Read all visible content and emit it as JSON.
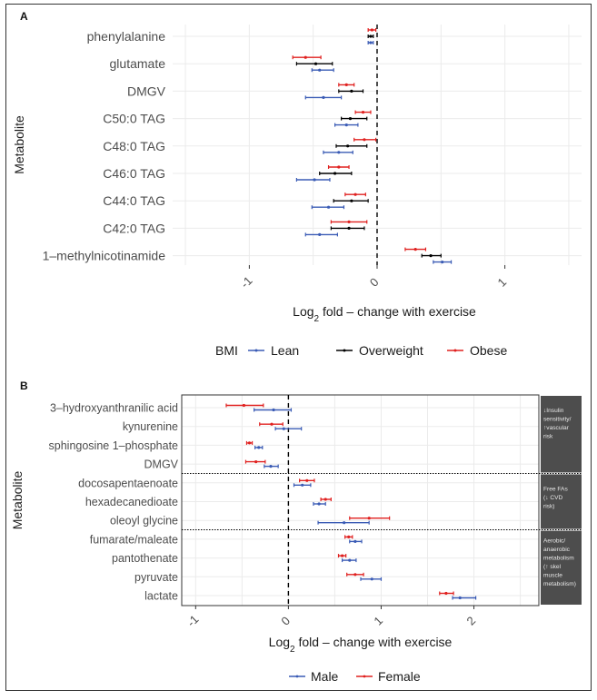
{
  "colors": {
    "lean": "#3a5bb5",
    "overweight": "#000000",
    "obese": "#e0201f",
    "male": "#3a5bb5",
    "female": "#e0201f",
    "side_panel": "#4d4d4d"
  },
  "chart_data": [
    {
      "panel": "A",
      "type": "forest",
      "ylabel": "Metabolite",
      "xlabel_pre": "Log",
      "xlabel_sub": "2",
      "xlabel_post": " fold – change with exercise",
      "xlim": [
        -1.6,
        1.6
      ],
      "xticks": [
        "-1",
        "0",
        "1"
      ],
      "xtick_values": [
        -1,
        0,
        1
      ],
      "reference_line": 0,
      "legend_title": "BMI",
      "legend": [
        "Lean",
        "Overweight",
        "Obese"
      ],
      "categories": [
        "phenylalanine",
        "glutamate",
        "DMGV",
        "C50:0 TAG",
        "C48:0 TAG",
        "C46:0 TAG",
        "C44:0 TAG",
        "C42:0 TAG",
        "1–methylnicotinamide"
      ],
      "series": [
        {
          "name": "Obese",
          "estimate": [
            -0.04,
            -0.56,
            -0.24,
            -0.11,
            -0.1,
            -0.3,
            -0.17,
            -0.22,
            0.3
          ],
          "lower": [
            -0.07,
            -0.66,
            -0.3,
            -0.17,
            -0.18,
            -0.38,
            -0.25,
            -0.36,
            0.22
          ],
          "upper": [
            -0.01,
            -0.44,
            -0.18,
            -0.05,
            -0.01,
            -0.22,
            -0.09,
            -0.08,
            0.38
          ]
        },
        {
          "name": "Overweight",
          "estimate": [
            -0.05,
            -0.48,
            -0.2,
            -0.21,
            -0.23,
            -0.33,
            -0.2,
            -0.22,
            0.42
          ],
          "lower": [
            -0.07,
            -0.63,
            -0.3,
            -0.28,
            -0.32,
            -0.45,
            -0.34,
            -0.36,
            0.35
          ],
          "upper": [
            -0.03,
            -0.35,
            -0.11,
            -0.08,
            -0.08,
            -0.2,
            -0.07,
            -0.1,
            0.5
          ]
        },
        {
          "name": "Lean",
          "estimate": [
            -0.05,
            -0.45,
            -0.42,
            -0.24,
            -0.3,
            -0.49,
            -0.38,
            -0.45,
            0.51
          ],
          "lower": [
            -0.07,
            -0.51,
            -0.56,
            -0.33,
            -0.42,
            -0.63,
            -0.51,
            -0.56,
            0.44
          ],
          "upper": [
            -0.03,
            -0.34,
            -0.28,
            -0.15,
            -0.19,
            -0.37,
            -0.26,
            -0.31,
            0.58
          ]
        }
      ]
    },
    {
      "panel": "B",
      "type": "forest",
      "ylabel": "Metabolite",
      "xlabel_pre": "Log",
      "xlabel_sub": "2",
      "xlabel_post": " fold – change with exercise",
      "xlim": [
        -1.15,
        2.7
      ],
      "xticks": [
        "-1",
        "0",
        "1",
        "2"
      ],
      "xtick_values": [
        -1,
        0,
        1,
        2
      ],
      "reference_line": 0,
      "legend": [
        "Male",
        "Female"
      ],
      "categories": [
        "3–hydroxyanthranilic acid",
        "kynurenine",
        "sphingosine 1–phosphate",
        "DMGV",
        "docosapentaenoate",
        "hexadecanedioate",
        "oleoyl glycine",
        "fumarate/maleate",
        "pantothenate",
        "pyruvate",
        "lactate"
      ],
      "groups": [
        {
          "label": "↓Insulin sensitivity/ ↑vascular risk",
          "from": 0,
          "to": 3
        },
        {
          "label": "Free FAs (↓ CVD risk)",
          "from": 4,
          "to": 6
        },
        {
          "label": "Aerobic/ anaerobic metabolism (↑ skel muscle metabolism)",
          "from": 7,
          "to": 10
        }
      ],
      "series": [
        {
          "name": "Female",
          "estimate": [
            -0.48,
            -0.18,
            -0.42,
            -0.35,
            0.2,
            0.4,
            0.87,
            0.65,
            0.58,
            0.72,
            1.7
          ],
          "lower": [
            -0.67,
            -0.31,
            -0.45,
            -0.46,
            0.12,
            0.35,
            0.66,
            0.61,
            0.54,
            0.63,
            1.63
          ],
          "upper": [
            -0.27,
            -0.06,
            -0.39,
            -0.25,
            0.28,
            0.46,
            1.09,
            0.69,
            0.62,
            0.81,
            1.78
          ]
        },
        {
          "name": "Male",
          "estimate": [
            -0.16,
            -0.05,
            -0.32,
            -0.19,
            0.15,
            0.33,
            0.6,
            0.72,
            0.66,
            0.9,
            1.85
          ],
          "lower": [
            -0.37,
            -0.14,
            -0.36,
            -0.26,
            0.06,
            0.27,
            0.32,
            0.66,
            0.58,
            0.78,
            1.77
          ],
          "upper": [
            0.03,
            0.14,
            -0.28,
            -0.11,
            0.24,
            0.4,
            0.87,
            0.79,
            0.73,
            1.0,
            2.02
          ]
        }
      ]
    }
  ]
}
